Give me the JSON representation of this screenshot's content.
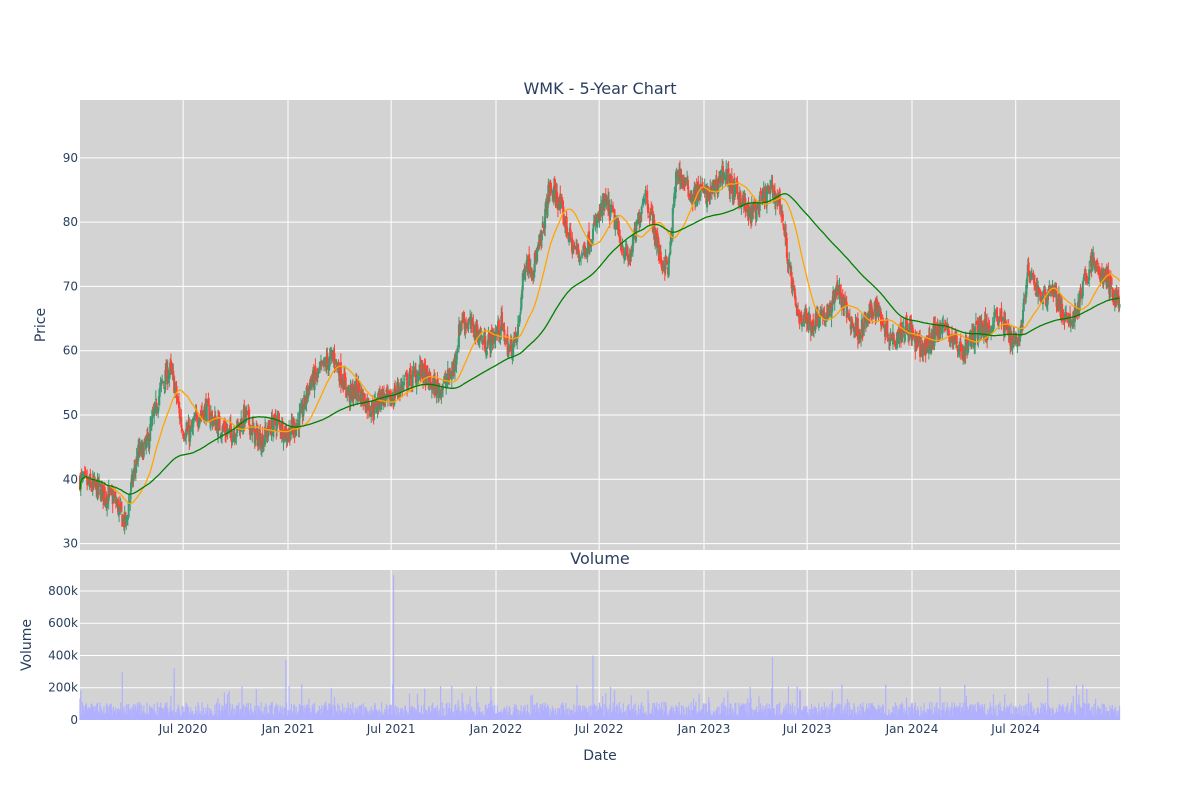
{
  "chart_data": [
    {
      "type": "candlestick",
      "title": "WMK - 5-Year Chart",
      "ylabel": "Price",
      "ylim": [
        29,
        99
      ],
      "yticks": [
        30,
        40,
        50,
        60,
        70,
        80,
        90
      ],
      "grid": true,
      "background": "#d3d3d3",
      "colors": {
        "up": "#3d9970",
        "down": "#ff4136",
        "ma_short": "#ffa500",
        "ma_long": "#008000"
      },
      "series": [
        {
          "style": "candlestick",
          "x": [
            "2020-01-02",
            "2020-01-20",
            "2020-02-03",
            "2020-02-17",
            "2020-03-02",
            "2020-03-16",
            "2020-03-23",
            "2020-03-30",
            "2020-04-13",
            "2020-04-27",
            "2020-05-11",
            "2020-05-25",
            "2020-06-08",
            "2020-06-15",
            "2020-06-29",
            "2020-07-13",
            "2020-07-27",
            "2020-08-10",
            "2020-08-24",
            "2020-09-07",
            "2020-09-21",
            "2020-10-05",
            "2020-10-19",
            "2020-11-02",
            "2020-11-16",
            "2020-11-30",
            "2020-12-14",
            "2020-12-28",
            "2021-01-11",
            "2021-01-25",
            "2021-02-08",
            "2021-02-22",
            "2021-03-08",
            "2021-03-22",
            "2021-04-05",
            "2021-04-19",
            "2021-05-03",
            "2021-05-17",
            "2021-05-31",
            "2021-06-14",
            "2021-06-28",
            "2021-07-12",
            "2021-07-26",
            "2021-08-09",
            "2021-08-23",
            "2021-09-06",
            "2021-09-20",
            "2021-10-04",
            "2021-10-18",
            "2021-11-01",
            "2021-11-15",
            "2021-11-29",
            "2021-12-13",
            "2021-12-27",
            "2022-01-10",
            "2022-01-24",
            "2022-02-07",
            "2022-02-21",
            "2022-03-07",
            "2022-03-21",
            "2022-04-04",
            "2022-04-18",
            "2022-05-02",
            "2022-05-16",
            "2022-05-30",
            "2022-06-13",
            "2022-06-27",
            "2022-07-11",
            "2022-07-25",
            "2022-08-08",
            "2022-08-22",
            "2022-09-05",
            "2022-09-19",
            "2022-10-03",
            "2022-10-17",
            "2022-10-31",
            "2022-11-14",
            "2022-11-28",
            "2022-12-12",
            "2022-12-26",
            "2023-01-09",
            "2023-01-23",
            "2023-02-06",
            "2023-02-20",
            "2023-03-06",
            "2023-03-20",
            "2023-04-03",
            "2023-04-17",
            "2023-05-01",
            "2023-05-15",
            "2023-05-29",
            "2023-06-12",
            "2023-06-26",
            "2023-07-10",
            "2023-07-24",
            "2023-08-07",
            "2023-08-21",
            "2023-09-04",
            "2023-09-18",
            "2023-10-02",
            "2023-10-16",
            "2023-10-30",
            "2023-11-13",
            "2023-11-27",
            "2023-12-11",
            "2023-12-25",
            "2024-01-08",
            "2024-01-22",
            "2024-02-05",
            "2024-02-19",
            "2024-03-04",
            "2024-03-18",
            "2024-04-01",
            "2024-04-15",
            "2024-04-29",
            "2024-05-13",
            "2024-05-27",
            "2024-06-10",
            "2024-06-24",
            "2024-07-08",
            "2024-07-22",
            "2024-08-05",
            "2024-08-19",
            "2024-09-02",
            "2024-09-16",
            "2024-09-30",
            "2024-10-14",
            "2024-10-28",
            "2024-11-11",
            "2024-11-25",
            "2024-12-09",
            "2024-12-23"
          ],
          "close": [
            40,
            39,
            38.5,
            37.5,
            37,
            34,
            33,
            38,
            44,
            45,
            50,
            55,
            57,
            55,
            48,
            47,
            50,
            51,
            49,
            48,
            47,
            48,
            50,
            47,
            46,
            48,
            49,
            47,
            48,
            50,
            55,
            56,
            58,
            59,
            56,
            53,
            54,
            52,
            51,
            53,
            52,
            54,
            55,
            56,
            57,
            55,
            54,
            55,
            57,
            65,
            64,
            63,
            61,
            62,
            64,
            60,
            62,
            74,
            73,
            77,
            85,
            84,
            80,
            76,
            75,
            77,
            80,
            83,
            81,
            77,
            74,
            79,
            85,
            80,
            74,
            73,
            88,
            86,
            84,
            85,
            84,
            86,
            88,
            85,
            84,
            81,
            82,
            84,
            85,
            83,
            74,
            66,
            65,
            64,
            66,
            65,
            70,
            67,
            64,
            63,
            65,
            67,
            64,
            62,
            63,
            64,
            61,
            60,
            62,
            64,
            63,
            61,
            60,
            62,
            64,
            63,
            66,
            64,
            62,
            62,
            72,
            70,
            68,
            70,
            67,
            64,
            66,
            70,
            74,
            72,
            71,
            68
          ]
        },
        {
          "name": "",
          "style": "line",
          "values_note": "short moving average",
          "color": "#ffa500"
        },
        {
          "name": "",
          "style": "line",
          "values_note": "long moving average",
          "color": "#008000"
        }
      ]
    },
    {
      "type": "bar",
      "title": "Volume",
      "xlabel": "Date",
      "ylabel": "Volume",
      "ylim": [
        0,
        930000
      ],
      "yticks": [
        0,
        200000,
        400000,
        600000,
        800000
      ],
      "ytick_labels": [
        "0",
        "200k",
        "400k",
        "600k",
        "800k"
      ],
      "color": "#b0b0ff",
      "spikes": [
        {
          "x": "2020-03-16",
          "value": 300000
        },
        {
          "x": "2020-06-15",
          "value": 320000
        },
        {
          "x": "2020-12-28",
          "value": 370000
        },
        {
          "x": "2021-07-05",
          "value": 900000
        },
        {
          "x": "2022-06-20",
          "value": 400000
        },
        {
          "x": "2023-05-01",
          "value": 390000
        },
        {
          "x": "2024-08-26",
          "value": 260000
        }
      ],
      "baseline_typical": 80000
    }
  ],
  "x_axis": {
    "range": [
      "2020-01-02",
      "2024-12-31"
    ],
    "ticks": [
      {
        "date": "2020-07-01",
        "label": "Jul 2020"
      },
      {
        "date": "2021-01-01",
        "label": "Jan 2021"
      },
      {
        "date": "2021-07-01",
        "label": "Jul 2021"
      },
      {
        "date": "2022-01-01",
        "label": "Jan 2022"
      },
      {
        "date": "2022-07-01",
        "label": "Jul 2022"
      },
      {
        "date": "2023-01-01",
        "label": "Jan 2023"
      },
      {
        "date": "2023-07-01",
        "label": "Jul 2023"
      },
      {
        "date": "2024-01-01",
        "label": "Jan 2024"
      },
      {
        "date": "2024-07-01",
        "label": "Jul 2024"
      }
    ]
  }
}
